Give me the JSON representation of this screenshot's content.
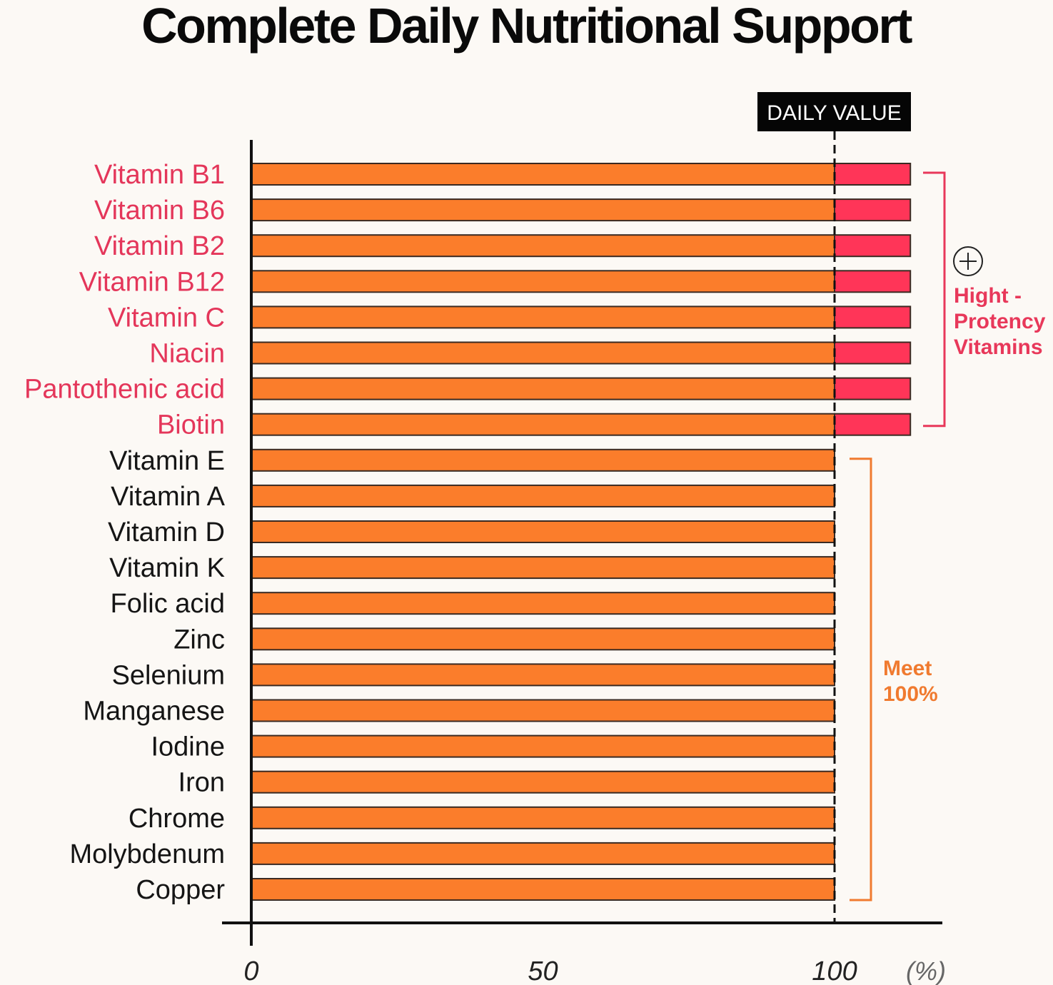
{
  "chart_data": {
    "type": "bar",
    "orientation": "horizontal",
    "title": "Complete Daily Nutritional Support",
    "x_unit_label": "(%)",
    "xlim": [
      0,
      120
    ],
    "x_ticks": [
      "0",
      "50",
      "100"
    ],
    "x_tick_values": [
      0,
      50,
      100
    ],
    "reference_line": {
      "label": "DAILY VALUE",
      "value": 100
    },
    "categories": [
      "Vitamin B1",
      "Vitamin B6",
      "Vitamin B2",
      "Vitamin B12",
      "Vitamin C",
      "Niacin",
      "Pantothenic acid",
      "Biotin",
      "Vitamin E",
      "Vitamin A",
      "Vitamin D",
      "Vitamin K",
      "Folic acid",
      "Zinc",
      "Selenium",
      "Manganese",
      "Iodine",
      "Iron",
      "Chrome",
      "Molybdenum",
      "Copper"
    ],
    "values": [
      113,
      113,
      113,
      113,
      113,
      113,
      113,
      113,
      100,
      100,
      100,
      100,
      100,
      100,
      100,
      100,
      100,
      100,
      100,
      100,
      100
    ],
    "groups": [
      {
        "label_lines": [
          "Hight -",
          "Protency",
          "Vitamins"
        ],
        "from_index": 0,
        "to_index": 7,
        "color": "#e8385a",
        "icon": "plus-circle-icon"
      },
      {
        "label_lines": [
          "Meet",
          "100%"
        ],
        "from_index": 8,
        "to_index": 20,
        "color": "#f07a2f"
      }
    ],
    "colors": {
      "bar": "#fb7d2b",
      "bar_excess": "#ff3558",
      "bar_outline": "#3a2a22",
      "label_high": "#e4365a",
      "label_normal": "#151515",
      "axis": "#111111"
    },
    "grid": false
  }
}
